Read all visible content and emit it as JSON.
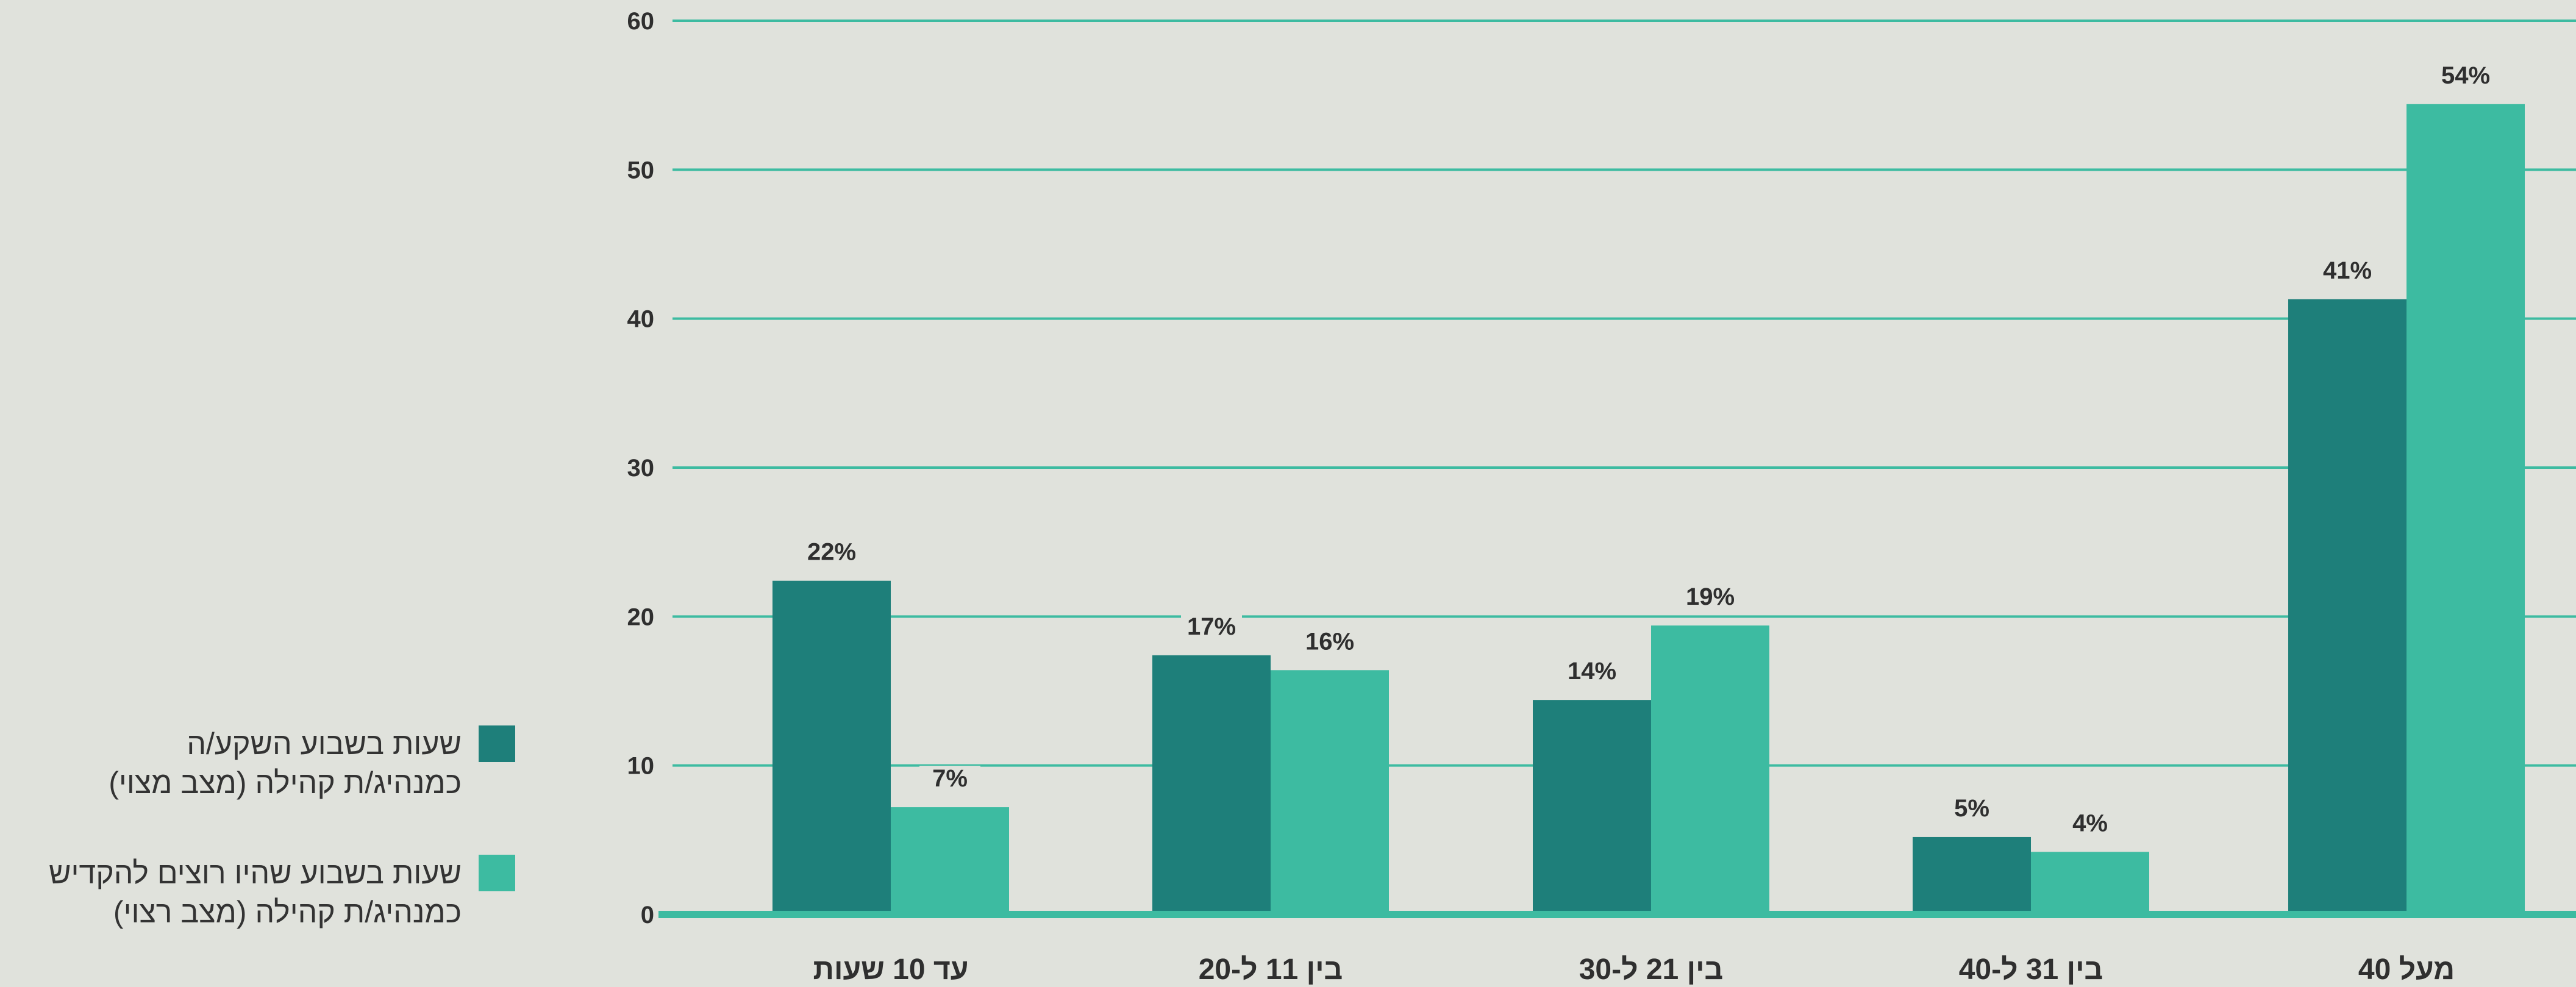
{
  "chart_data": {
    "type": "bar",
    "categories": [
      "עד 10 שעות",
      "בין 11 ל-20",
      "בין 21 ל-30",
      "בין 31 ל-40",
      "מעל 40"
    ],
    "series": [
      {
        "name": "שעות בשבוע השקע/ה כמנהיג/ת קהילה (מצב מצוי)",
        "values": [
          22.4,
          17.4,
          14.4,
          5.2,
          41.3
        ],
        "labels": [
          "22%",
          "17%",
          "14%",
          "5%",
          "41%"
        ],
        "color": "#1e7f7a"
      },
      {
        "name": "שעות בשבוע שהיו רוצים להקדיש כמנהיג/ת קהילה (מצב רצוי)",
        "values": [
          7.2,
          16.4,
          19.4,
          4.2,
          54.4
        ],
        "labels": [
          "7%",
          "16%",
          "19%",
          "4%",
          "54%"
        ],
        "color": "#3dbba1"
      }
    ],
    "yticks": [
      "0",
      "10",
      "20",
      "30",
      "40",
      "50",
      "60"
    ],
    "ylim": [
      0,
      60
    ],
    "grid": true,
    "grid_color": "#3dbba1",
    "legend_position": "left"
  },
  "legend": {
    "items": [
      {
        "line1": "שעות בשבוע השקע/ה",
        "line2": "כמנהיג/ת קהילה (מצב מצוי)",
        "color": "#1e7f7a"
      },
      {
        "line1": "שעות בשבוע שהיו רוצים להקדיש",
        "line2": "כמנהיג/ת קהילה (מצב רצוי)",
        "color": "#3dbba1"
      }
    ]
  }
}
